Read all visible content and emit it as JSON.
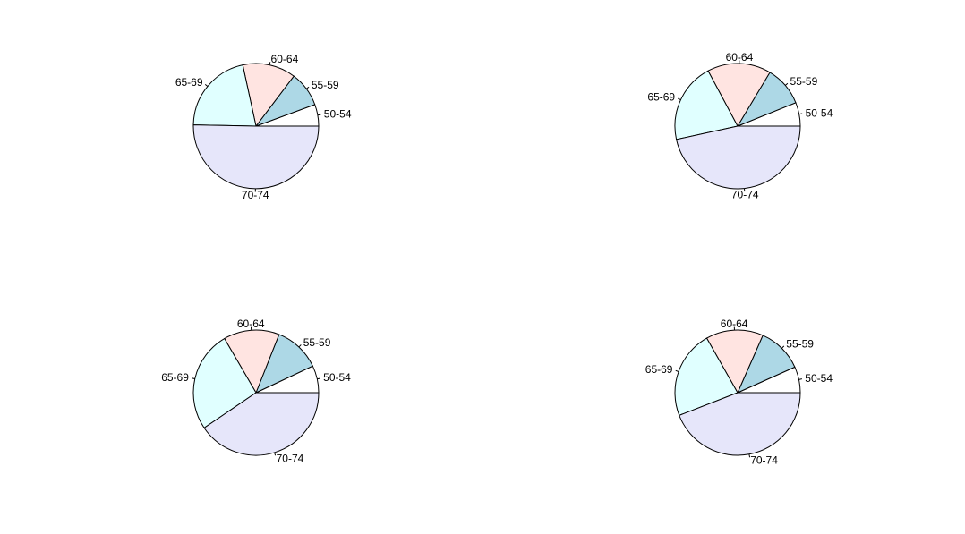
{
  "chart_data": [
    {
      "type": "pie",
      "categories": [
        "50-54",
        "55-59",
        "60-64",
        "65-69",
        "70-74"
      ],
      "values": [
        5.6,
        9.1,
        13.7,
        21.3,
        50.3
      ],
      "colors": [
        "#FFFFFF",
        "#ADD8E6",
        "#FFE4E1",
        "#E0FFFF",
        "#E6E6FA"
      ],
      "start_angle_deg": 0,
      "direction": "counterclockwise",
      "legend": "none"
    },
    {
      "type": "pie",
      "categories": [
        "50-54",
        "55-59",
        "60-64",
        "65-69",
        "70-74"
      ],
      "values": [
        6.1,
        10.3,
        16.4,
        20.6,
        46.6
      ],
      "colors": [
        "#FFFFFF",
        "#ADD8E6",
        "#FFE4E1",
        "#E0FFFF",
        "#E6E6FA"
      ],
      "start_angle_deg": 0,
      "direction": "counterclockwise",
      "legend": "none"
    },
    {
      "type": "pie",
      "categories": [
        "50-54",
        "55-59",
        "60-64",
        "65-69",
        "70-74"
      ],
      "values": [
        7.0,
        12.0,
        14.4,
        26.1,
        40.5
      ],
      "colors": [
        "#FFFFFF",
        "#ADD8E6",
        "#FFE4E1",
        "#E0FFFF",
        "#E6E6FA"
      ],
      "start_angle_deg": 0,
      "direction": "counterclockwise",
      "legend": "none"
    },
    {
      "type": "pie",
      "categories": [
        "50-54",
        "55-59",
        "60-64",
        "65-69",
        "70-74"
      ],
      "values": [
        6.7,
        11.7,
        14.8,
        22.7,
        44.1
      ],
      "colors": [
        "#FFFFFF",
        "#ADD8E6",
        "#FFE4E1",
        "#E0FFFF",
        "#E6E6FA"
      ],
      "start_angle_deg": 0,
      "direction": "counterclockwise",
      "legend": "none"
    }
  ]
}
